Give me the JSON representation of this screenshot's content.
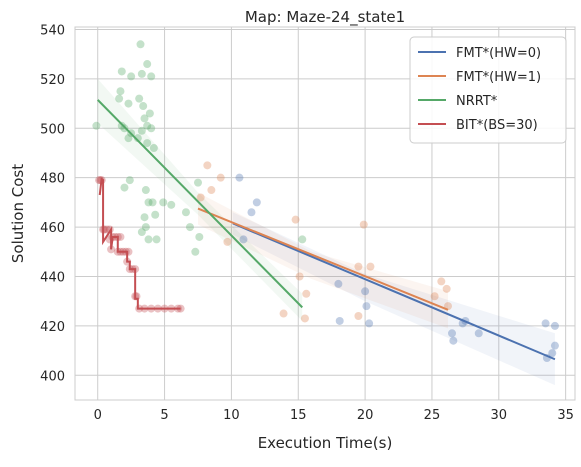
{
  "chart_data": {
    "type": "scatter",
    "title": "Map: Maze-24_state1",
    "xlabel": "Execution Time(s)",
    "ylabel": "Solution Cost",
    "xlim": [
      -1.7,
      35.7
    ],
    "ylim": [
      390,
      541
    ],
    "xticks": [
      0,
      5,
      10,
      15,
      20,
      25,
      30,
      35
    ],
    "yticks": [
      400,
      420,
      440,
      460,
      480,
      500,
      520,
      540
    ],
    "grid": true,
    "legend_position": "top-right",
    "series": [
      {
        "name": "FMT*(HW=0)",
        "color": "#4c72b0",
        "points": [
          [
            10.6,
            480
          ],
          [
            11.9,
            470
          ],
          [
            11.5,
            466
          ],
          [
            10.9,
            455
          ],
          [
            18.0,
            437
          ],
          [
            18.1,
            422
          ],
          [
            20.0,
            434
          ],
          [
            20.1,
            428
          ],
          [
            20.3,
            421
          ],
          [
            27.3,
            421
          ],
          [
            27.5,
            422
          ],
          [
            26.5,
            417
          ],
          [
            26.6,
            414
          ],
          [
            28.5,
            417
          ],
          [
            33.5,
            421
          ],
          [
            34.2,
            420
          ],
          [
            34.2,
            412
          ],
          [
            34.0,
            409
          ],
          [
            33.6,
            407
          ]
        ],
        "fit": {
          "x": [
            10.1,
            34.2
          ],
          "y": [
            461.5,
            406.5
          ]
        },
        "band": {
          "upper": [
            [
              10.1,
              466
            ],
            [
              20,
              441
            ],
            [
              34.2,
              417
            ]
          ],
          "lower": [
            [
              10.1,
              457
            ],
            [
              20,
              430
            ],
            [
              34.2,
              396
            ]
          ]
        }
      },
      {
        "name": "FMT*(HW=1)",
        "color": "#dd8452",
        "points": [
          [
            8.2,
            485
          ],
          [
            9.2,
            480
          ],
          [
            8.5,
            475
          ],
          [
            7.7,
            472
          ],
          [
            9.7,
            454
          ],
          [
            14.8,
            463
          ],
          [
            15.1,
            440
          ],
          [
            15.6,
            433
          ],
          [
            15.5,
            423
          ],
          [
            13.9,
            425
          ],
          [
            19.5,
            444
          ],
          [
            19.9,
            461
          ],
          [
            20.4,
            444
          ],
          [
            19.5,
            424
          ],
          [
            25.7,
            438
          ],
          [
            26.1,
            435
          ],
          [
            26.2,
            428
          ],
          [
            25.2,
            432
          ]
        ],
        "fit": {
          "x": [
            7.5,
            26.2
          ],
          "y": [
            467.5,
            426.5
          ]
        },
        "band": {
          "upper": [
            [
              7.5,
              474
            ],
            [
              16,
              450
            ],
            [
              26.2,
              434
            ]
          ],
          "lower": [
            [
              7.5,
              461
            ],
            [
              16,
              439
            ],
            [
              26.2,
              419
            ]
          ]
        }
      },
      {
        "name": "NRRT*",
        "color": "#55a868",
        "points": [
          [
            3.2,
            534
          ],
          [
            1.8,
            523
          ],
          [
            2.5,
            521
          ],
          [
            3.3,
            522
          ],
          [
            3.7,
            526
          ],
          [
            4.0,
            521
          ],
          [
            1.7,
            515
          ],
          [
            1.6,
            512
          ],
          [
            2.3,
            510
          ],
          [
            3.5,
            504
          ],
          [
            3.9,
            506
          ],
          [
            3.1,
            512
          ],
          [
            3.4,
            509
          ],
          [
            -0.1,
            501
          ],
          [
            1.8,
            501
          ],
          [
            2.0,
            500
          ],
          [
            2.3,
            496
          ],
          [
            2.5,
            498
          ],
          [
            3.0,
            496
          ],
          [
            3.3,
            499
          ],
          [
            3.7,
            501
          ],
          [
            4.0,
            500
          ],
          [
            3.7,
            494
          ],
          [
            4.2,
            492
          ],
          [
            2.4,
            479
          ],
          [
            2.0,
            476
          ],
          [
            3.6,
            475
          ],
          [
            4.1,
            470
          ],
          [
            3.8,
            470
          ],
          [
            4.9,
            470
          ],
          [
            5.5,
            469
          ],
          [
            4.3,
            465
          ],
          [
            3.5,
            464
          ],
          [
            3.6,
            460
          ],
          [
            3.3,
            458
          ],
          [
            6.6,
            466
          ],
          [
            6.9,
            460
          ],
          [
            3.8,
            455
          ],
          [
            4.4,
            455
          ],
          [
            7.5,
            478
          ],
          [
            7.6,
            456
          ],
          [
            7.3,
            450
          ],
          [
            15.3,
            455
          ]
        ],
        "fit": {
          "x": [
            0.0,
            15.3
          ],
          "y": [
            511.5,
            427.5
          ]
        },
        "band": {
          "upper": [
            [
              0,
              520
            ],
            [
              7.5,
              474
            ],
            [
              15.3,
              433
            ]
          ],
          "lower": [
            [
              0,
              502
            ],
            [
              7.5,
              465
            ],
            [
              15.3,
              422
            ]
          ]
        }
      },
      {
        "name": "BIT*(BS=30)",
        "color": "#c44e52",
        "points": [
          [
            0.1,
            479
          ],
          [
            0.2,
            479
          ],
          [
            0.3,
            479
          ],
          [
            0.4,
            459
          ],
          [
            0.5,
            459
          ],
          [
            0.7,
            459
          ],
          [
            0.9,
            459
          ],
          [
            0.9,
            455
          ],
          [
            1.0,
            451
          ],
          [
            1.1,
            456
          ],
          [
            1.3,
            456
          ],
          [
            1.5,
            456
          ],
          [
            1.7,
            456
          ],
          [
            1.5,
            450
          ],
          [
            1.7,
            450
          ],
          [
            1.9,
            450
          ],
          [
            2.1,
            450
          ],
          [
            2.3,
            450
          ],
          [
            2.2,
            446
          ],
          [
            2.4,
            443
          ],
          [
            2.6,
            443
          ],
          [
            2.8,
            443
          ],
          [
            2.8,
            432
          ],
          [
            2.9,
            432
          ],
          [
            3.1,
            427
          ],
          [
            3.5,
            427
          ],
          [
            4.0,
            427
          ],
          [
            4.5,
            427
          ],
          [
            5.0,
            427
          ],
          [
            5.5,
            427
          ],
          [
            6.0,
            427
          ],
          [
            6.2,
            427
          ]
        ],
        "step": {
          "x": [
            0.15,
            0.3,
            0.3,
            0.4,
            0.4,
            1.0,
            1.0,
            1.1,
            1.1,
            1.5,
            1.5,
            2.2,
            2.2,
            2.4,
            2.4,
            2.8,
            2.8,
            3.0,
            3.0,
            6.2
          ],
          "y": [
            473,
            480,
            479,
            479,
            454,
            459,
            451,
            455,
            456,
            456,
            450,
            450,
            446,
            446,
            443,
            443,
            431,
            431,
            427,
            427
          ]
        }
      }
    ]
  }
}
